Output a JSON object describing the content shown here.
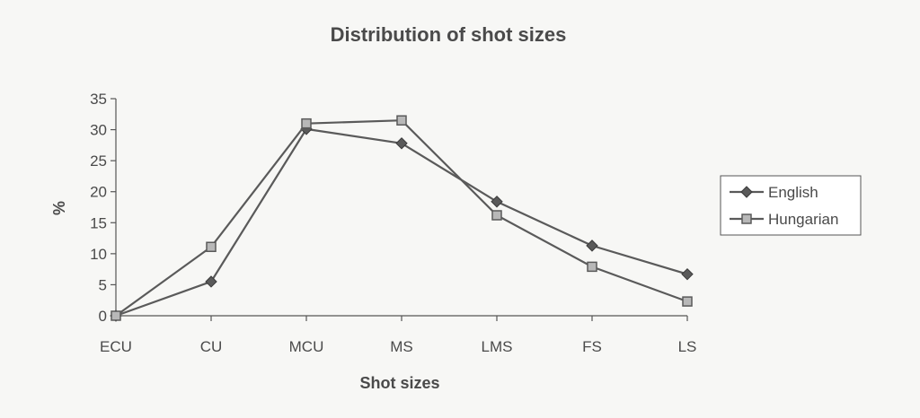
{
  "chart_data": {
    "type": "line",
    "title": "Distribution of shot sizes",
    "xlabel": "Shot sizes",
    "ylabel": "%",
    "categories": [
      "ECU",
      "CU",
      "MCU",
      "MS",
      "LMS",
      "FS",
      "LS"
    ],
    "ylim": [
      0,
      35
    ],
    "yticks": [
      0,
      5,
      10,
      15,
      20,
      25,
      30,
      35
    ],
    "grid": false,
    "legend_position": "right",
    "series": [
      {
        "name": "English",
        "marker": "diamond",
        "color": "#5a5a5a",
        "values": [
          0,
          5.5,
          30.1,
          27.8,
          18.4,
          11.3,
          6.7
        ]
      },
      {
        "name": "Hungarian",
        "marker": "square",
        "color": "#5a5a5a",
        "marker_fill": "#b8b8b8",
        "values": [
          0,
          11.1,
          31.0,
          31.5,
          16.2,
          7.9,
          2.3
        ]
      }
    ]
  }
}
